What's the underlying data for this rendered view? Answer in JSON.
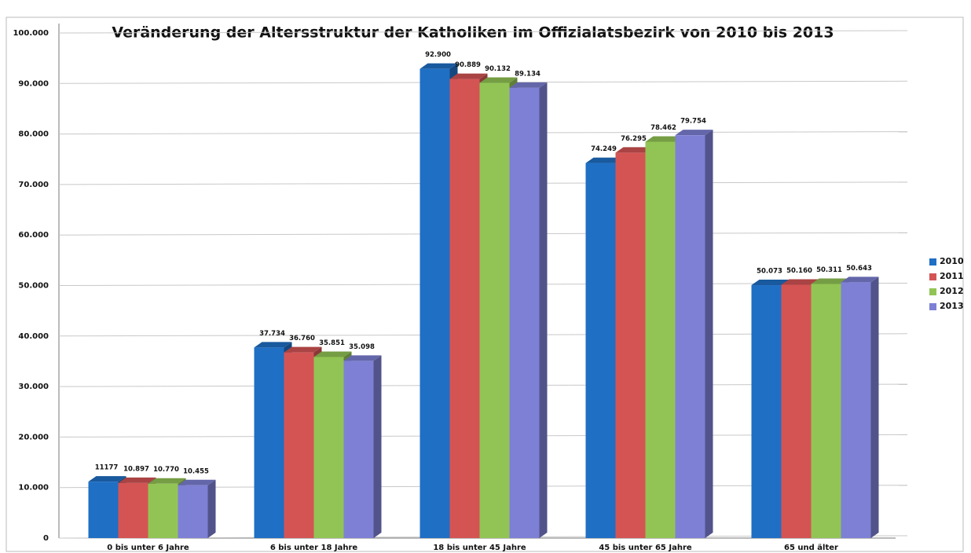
{
  "chart_data": {
    "type": "bar",
    "title": "Veränderung der Altersstruktur der Katholiken  im Offizialatsbezirk  von 2010  bis 2013",
    "categories": [
      "0 bis unter 6 Jahre",
      "6 bis unter 18 Jahre",
      "18 bis unter 45 Jahre",
      "45 bis unter 65 Jahre",
      "65 und älter"
    ],
    "series": [
      {
        "name": "2010",
        "color": "#1f6fc4",
        "values": [
          11177,
          37734,
          92900,
          74249,
          50073
        ],
        "value_labels": [
          "11177",
          "37.734",
          "92.900",
          "74.249",
          "50.073"
        ]
      },
      {
        "name": "2011",
        "color": "#d45454",
        "values": [
          10897,
          36760,
          90889,
          76295,
          50160
        ],
        "value_labels": [
          "10.897",
          "36.760",
          "90.889",
          "76.295",
          "50.160"
        ]
      },
      {
        "name": "2012",
        "color": "#92c455",
        "values": [
          10770,
          35851,
          90132,
          78462,
          50311
        ],
        "value_labels": [
          "10.770",
          "35.851",
          "90.132",
          "78.462",
          "50.311"
        ]
      },
      {
        "name": "2013",
        "color": "#7d80d4",
        "values": [
          10455,
          35098,
          89134,
          79754,
          50643
        ],
        "value_labels": [
          "10.455",
          "35.098",
          "89.134",
          "79.754",
          "50.643"
        ]
      }
    ],
    "ylim": [
      0,
      100000
    ],
    "yticks": [
      0,
      {
        "value": 10000,
        "label": "10.000"
      },
      {
        "value": 20000,
        "label": "20.000"
      },
      {
        "value": 30000,
        "label": "30.000"
      },
      {
        "value": 40000,
        "label": "40.000"
      },
      {
        "value": 50000,
        "label": "50.000"
      },
      {
        "value": 60000,
        "label": "60.000"
      },
      {
        "value": 70000,
        "label": "70.000"
      },
      {
        "value": 80000,
        "label": "80.000"
      },
      {
        "value": 90000,
        "label": "90.000"
      },
      {
        "value": 100000,
        "label": "100.000"
      }
    ],
    "grid": true,
    "legend": "right"
  }
}
